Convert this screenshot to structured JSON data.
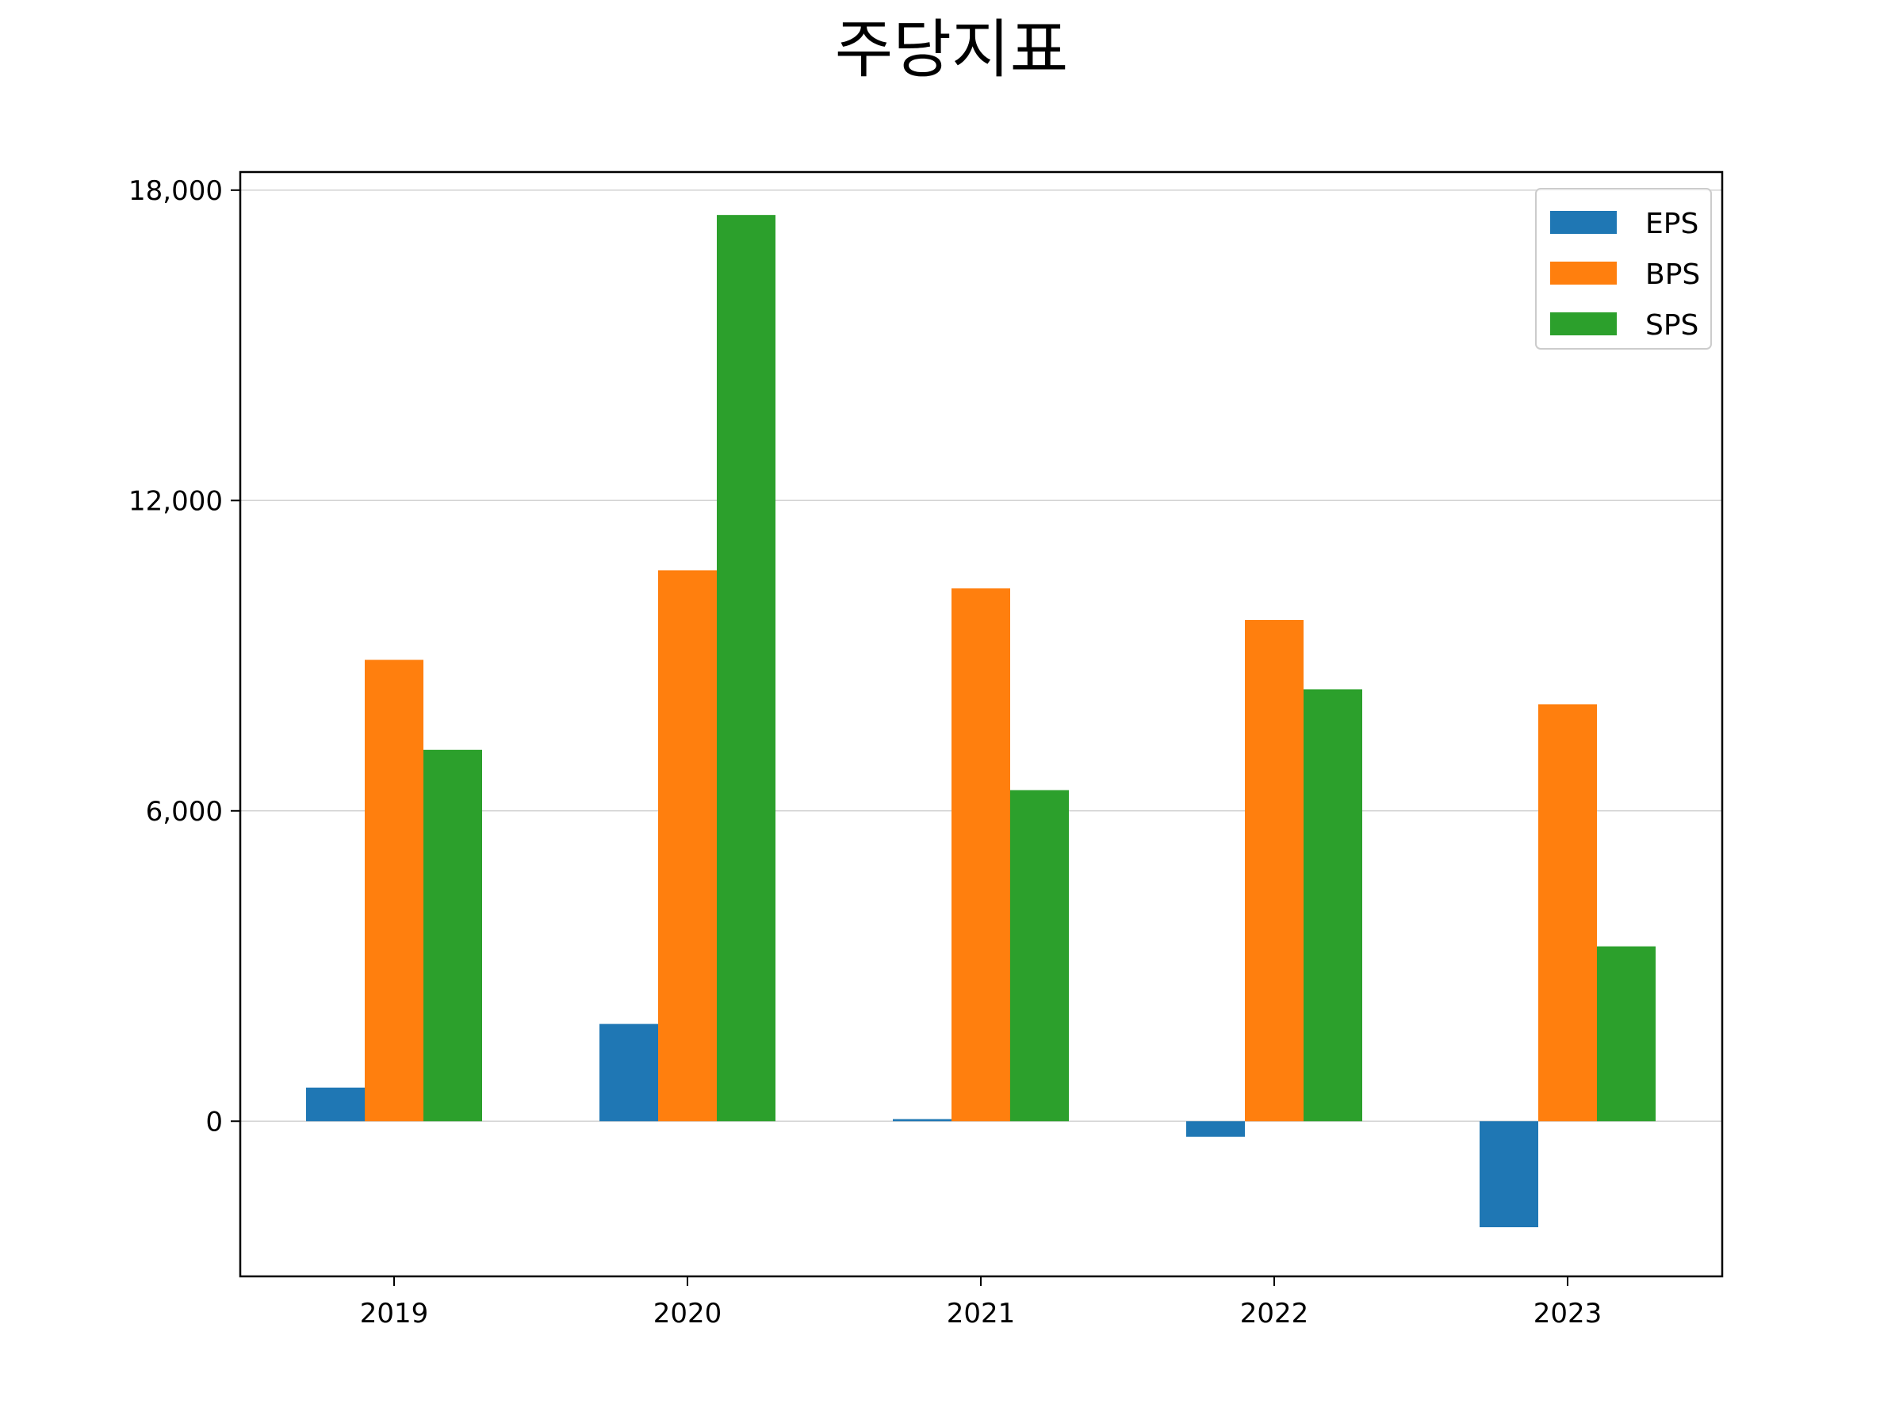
{
  "chart_data": {
    "type": "bar",
    "title": "주당지표",
    "xlabel": "",
    "ylabel": "",
    "categories": [
      "2019",
      "2020",
      "2021",
      "2022",
      "2023"
    ],
    "series": [
      {
        "name": "EPS",
        "color": "#1f77b4",
        "values": [
          650,
          1880,
          40,
          -300,
          -2050
        ]
      },
      {
        "name": "BPS",
        "color": "#ff7f0e",
        "values": [
          8920,
          10650,
          10300,
          9690,
          8060
        ]
      },
      {
        "name": "SPS",
        "color": "#2ca02c",
        "values": [
          7180,
          17520,
          6400,
          8350,
          3380
        ]
      }
    ],
    "ylim": [
      -3000,
      18350
    ],
    "yticks": [
      0,
      6000,
      12000,
      18000
    ],
    "ytick_labels": [
      "0",
      "6,000",
      "12,000",
      "18,000"
    ],
    "grid": "horizontal",
    "legend_position": "upper right"
  }
}
